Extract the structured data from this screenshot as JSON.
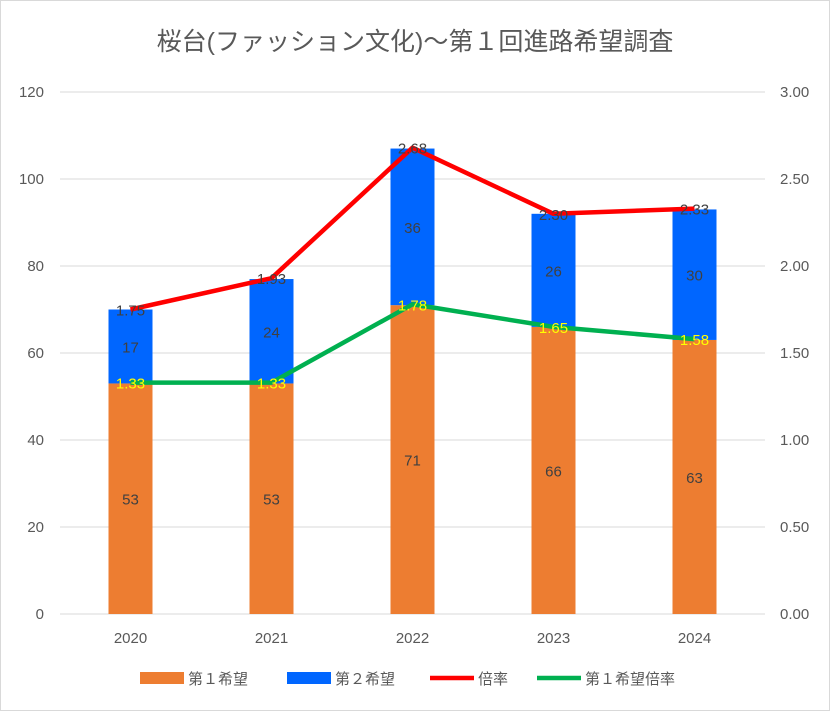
{
  "chart_data": {
    "type": "bar",
    "title": "桜台(ファッション文化)〜第１回進路希望調査",
    "categories": [
      "2020",
      "2021",
      "2022",
      "2023",
      "2024"
    ],
    "series": [
      {
        "name": "第１希望",
        "kind": "bar",
        "axis": "left",
        "color": "#ed7d31",
        "values": [
          53,
          53,
          71,
          66,
          63
        ]
      },
      {
        "name": "第２希望",
        "kind": "bar",
        "axis": "left",
        "color": "#0066ff",
        "values": [
          17,
          24,
          36,
          26,
          30
        ]
      },
      {
        "name": "倍率",
        "kind": "line",
        "axis": "right",
        "color": "#ff0000",
        "values": [
          1.75,
          1.93,
          2.68,
          2.3,
          2.33
        ],
        "labels": [
          "1.75",
          "1.93",
          "2.68",
          "2.30",
          "2.33"
        ]
      },
      {
        "name": "第１希望倍率",
        "kind": "line",
        "axis": "right",
        "color": "#00b050",
        "values": [
          1.33,
          1.33,
          1.78,
          1.65,
          1.58
        ],
        "labels": [
          "1.33",
          "1.33",
          "1.78",
          "1.65",
          "1.58"
        ]
      }
    ],
    "stacked": true,
    "ylim": [
      0,
      120
    ],
    "yticks": [
      "0",
      "20",
      "40",
      "60",
      "80",
      "100",
      "120"
    ],
    "y2lim": [
      0,
      3
    ],
    "y2ticks": [
      "0.00",
      "0.50",
      "1.00",
      "1.50",
      "2.00",
      "2.50",
      "3.00"
    ],
    "grid": true,
    "legend": "bottom"
  }
}
